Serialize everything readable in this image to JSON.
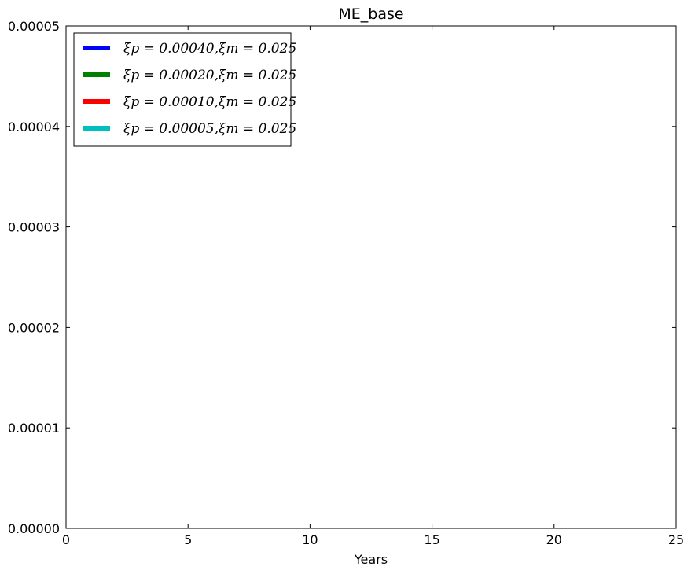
{
  "chart_data": {
    "type": "line",
    "title": "ME_base",
    "xlabel": "Years",
    "ylabel": "",
    "xlim": [
      0,
      25
    ],
    "ylim": [
      0,
      5e-05
    ],
    "x_ticks": [
      0,
      5,
      10,
      15,
      20,
      25
    ],
    "x_tick_labels": [
      "0",
      "5",
      "10",
      "15",
      "20",
      "25"
    ],
    "y_ticks": [
      0,
      1e-05,
      2e-05,
      3e-05,
      4e-05,
      5e-05
    ],
    "y_tick_labels": [
      "0.00000",
      "0.00001",
      "0.00002",
      "0.00003",
      "0.00004",
      "0.00005"
    ],
    "grid": false,
    "legend_position": "top-left",
    "series": [
      {
        "name": "ξp = 0.00040,ξm = 0.025",
        "color": "#0000ff",
        "x": [],
        "y": []
      },
      {
        "name": "ξp = 0.00020,ξm = 0.025",
        "color": "#008000",
        "x": [],
        "y": []
      },
      {
        "name": "ξp = 0.00010,ξm = 0.025",
        "color": "#ff0000",
        "x": [],
        "y": []
      },
      {
        "name": "ξp = 0.00005,ξm = 0.025",
        "color": "#00bfbf",
        "x": [],
        "y": []
      }
    ]
  }
}
